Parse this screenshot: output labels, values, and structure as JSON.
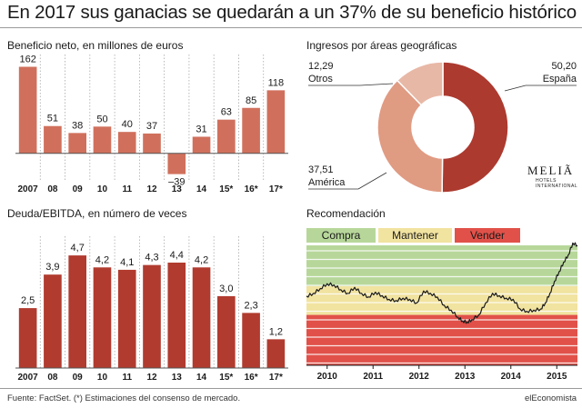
{
  "title": "En 2017 sus ganacias se quedarán a un 37% de su beneficio histórico",
  "footer": {
    "source": "Fuente: FactSet. (*) Estimaciones del consenso de mercado.",
    "brand": "elEconomista"
  },
  "colors": {
    "profit_bar": "#d0705c",
    "debt_bar": "#b13b2f",
    "espana": "#ac3a2f",
    "america": "#e09b83",
    "otros": "#e8b8a6",
    "compra": "#b7d79a",
    "mantener": "#f1e3a0",
    "vender": "#e15149",
    "line": "#1a1a1a"
  },
  "logo": {
    "name": "MELIÃ",
    "line1": "HOTELS",
    "line2": "INTERNATIONAL"
  },
  "chart_data": [
    {
      "type": "bar",
      "title": "Beneficio neto, en millones de euros",
      "categories": [
        "2007",
        "08",
        "09",
        "10",
        "11",
        "12",
        "13",
        "14",
        "15*",
        "16*",
        "17*"
      ],
      "values": [
        162,
        51,
        38,
        50,
        40,
        37,
        -39,
        31,
        63,
        85,
        118
      ],
      "value_labels": [
        "162",
        "51",
        "38",
        "50",
        "40",
        "37",
        "–39",
        "31",
        "63",
        "85",
        "118"
      ],
      "ylim": [
        -55,
        185
      ]
    },
    {
      "type": "bar",
      "title": "Deuda/EBITDA, en número de veces",
      "categories": [
        "2007",
        "08",
        "09",
        "10",
        "11",
        "12",
        "13",
        "14",
        "15*",
        "16*",
        "17*"
      ],
      "values": [
        2.5,
        3.9,
        4.7,
        4.2,
        4.1,
        4.3,
        4.4,
        4.2,
        3.0,
        2.3,
        1.2
      ],
      "value_labels": [
        "2,5",
        "3,9",
        "4,7",
        "4,2",
        "4,1",
        "4,3",
        "4,4",
        "4,2",
        "3,0",
        "2,3",
        "1,2"
      ],
      "ylim": [
        0,
        5.5
      ]
    },
    {
      "type": "pie",
      "title": "Ingresos por áreas geográficas",
      "slices": [
        {
          "name": "España",
          "value": 50.2,
          "label": "50,20"
        },
        {
          "name": "América",
          "value": 37.51,
          "label": "37,51"
        },
        {
          "name": "Otros",
          "value": 12.29,
          "label": "12,29"
        }
      ]
    },
    {
      "type": "line",
      "title": "Recomendación",
      "legend": [
        "Compra",
        "Mantener",
        "Vender"
      ],
      "x_ticks": [
        "2010",
        "2011",
        "2012",
        "2013",
        "2014",
        "2015"
      ],
      "x_range": [
        2009.55,
        2015.45
      ],
      "y_range": [
        0,
        1
      ],
      "zones": [
        {
          "name": "Compra",
          "from": 0.66,
          "to": 1.0
        },
        {
          "name": "Mantener",
          "from": 0.42,
          "to": 0.66
        },
        {
          "name": "Vender",
          "from": 0.0,
          "to": 0.42
        }
      ],
      "x": [
        2009.55,
        2009.7,
        2009.85,
        2010.0,
        2010.15,
        2010.3,
        2010.45,
        2010.6,
        2010.75,
        2010.9,
        2011.05,
        2011.2,
        2011.35,
        2011.5,
        2011.65,
        2011.8,
        2011.95,
        2012.1,
        2012.25,
        2012.4,
        2012.55,
        2012.7,
        2012.85,
        2012.95,
        2013.05,
        2013.15,
        2013.3,
        2013.45,
        2013.6,
        2013.75,
        2013.9,
        2014.05,
        2014.2,
        2014.35,
        2014.5,
        2014.65,
        2014.75,
        2014.85,
        2014.95,
        2015.05,
        2015.15,
        2015.25,
        2015.35,
        2015.45
      ],
      "y": [
        0.575,
        0.6,
        0.64,
        0.68,
        0.67,
        0.63,
        0.6,
        0.65,
        0.6,
        0.57,
        0.61,
        0.58,
        0.55,
        0.54,
        0.56,
        0.55,
        0.52,
        0.62,
        0.6,
        0.57,
        0.5,
        0.46,
        0.4,
        0.37,
        0.36,
        0.38,
        0.42,
        0.52,
        0.6,
        0.58,
        0.56,
        0.55,
        0.47,
        0.45,
        0.46,
        0.47,
        0.52,
        0.6,
        0.7,
        0.78,
        0.86,
        0.92,
        1.02,
        1.0
      ]
    }
  ]
}
